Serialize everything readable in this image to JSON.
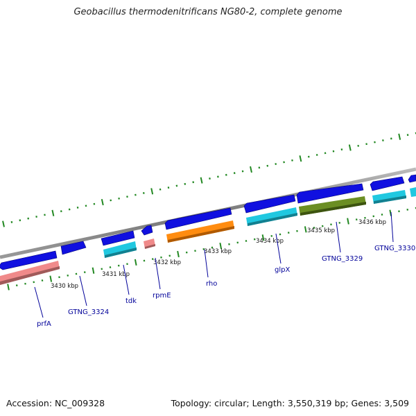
{
  "title": "Geobacillus thermodenitrificans NG80-2, complete genome",
  "accession_text": "Accession: NC_009328",
  "topology_text": "Topology: circular; Length: 3,550,319 bp; Genes: 3,509",
  "colors": {
    "backbone": "#888888",
    "ticks": "#228822",
    "forward_gene": "#1010e0",
    "cds_pink": "#f08a8a",
    "cds_cyan": "#20c8e0",
    "cds_orange": "#ff8c10",
    "cds_olive": "#6b8e23",
    "label": "#000099"
  },
  "scale_labels": [
    "3430 kbp",
    "3431 kbp",
    "3432 kbp",
    "3433 kbp",
    "3434 kbp",
    "3435 kbp",
    "3436 kbp"
  ],
  "gene_labels": [
    "prfA",
    "GTNG_3324",
    "tdk",
    "rpmE",
    "rho",
    "glpX",
    "GTNG_3329",
    "GTNG_3330"
  ]
}
